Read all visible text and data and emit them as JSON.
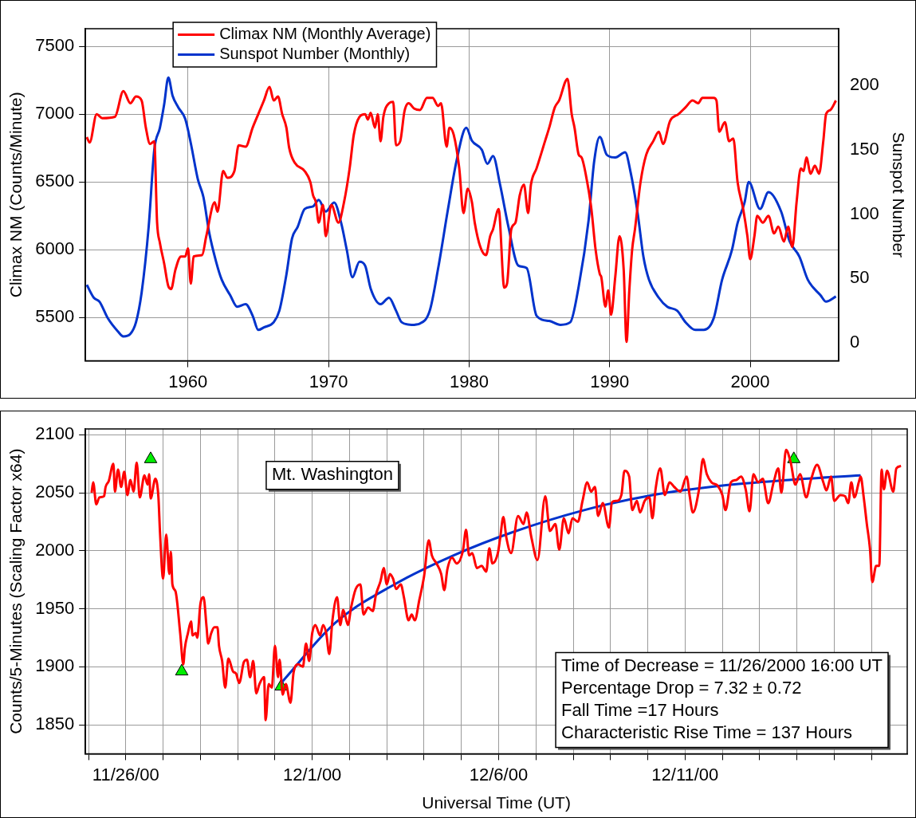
{
  "chart_data": [
    {
      "type": "line",
      "ylabel": "Climax NM (Counts/Minute)",
      "y2label": "Sunspot Number",
      "xlim": [
        1952.7,
        2006.3
      ],
      "ylim": [
        5180,
        7630
      ],
      "y2lim": [
        -14,
        244
      ],
      "xticks": [
        1960,
        1970,
        1980,
        1990,
        2000
      ],
      "yticks": [
        5500,
        6000,
        6500,
        7000,
        7500
      ],
      "y2ticks": [
        0,
        50,
        100,
        150,
        200
      ],
      "grid": true,
      "legend": "top left",
      "series": [
        {
          "name": "Climax NM (Monthly Average)",
          "color": "#ff0000",
          "x": [
            1952.8,
            1953.0,
            1953.5,
            1953.9,
            1954.8,
            1955.4,
            1955.9,
            1956.3,
            1956.7,
            1957.0,
            1957.3,
            1957.6,
            1957.8,
            1958.0,
            1958.3,
            1958.6,
            1958.8,
            1959.1,
            1959.5,
            1959.8,
            1960.0,
            1960.2,
            1960.4,
            1961.0,
            1961.3,
            1961.9,
            1962.1,
            1962.5,
            1962.8,
            1963.3,
            1963.6,
            1964.1,
            1964.6,
            1965.0,
            1965.4,
            1965.8,
            1966.1,
            1966.4,
            1966.7,
            1967.0,
            1967.2,
            1967.6,
            1968.3,
            1968.7,
            1968.9,
            1969.1,
            1969.3,
            1969.6,
            1969.8,
            1970.2,
            1970.7,
            1971.1,
            1971.5,
            1971.8,
            1972.2,
            1972.6,
            1972.8,
            1973.0,
            1973.3,
            1973.5,
            1973.7,
            1973.9,
            1974.3,
            1974.6,
            1974.8,
            1975.1,
            1975.4,
            1975.7,
            1976.1,
            1976.5,
            1977.0,
            1977.4,
            1977.8,
            1978.0,
            1978.4,
            1978.6,
            1978.9,
            1979.3,
            1979.6,
            1979.9,
            1980.2,
            1980.4,
            1980.8,
            1981.2,
            1981.5,
            1981.7,
            1982.1,
            1982.5,
            1982.7,
            1983.0,
            1983.3,
            1983.6,
            1983.9,
            1984.2,
            1984.4,
            1984.8,
            1985.4,
            1985.7,
            1986.1,
            1986.4,
            1987.0,
            1987.3,
            1987.5,
            1987.8,
            1988.0,
            1988.4,
            1988.7,
            1989.0,
            1989.3,
            1989.4,
            1989.7,
            1989.9,
            1990.1,
            1990.4,
            1990.7,
            1991.0,
            1991.2,
            1991.4,
            1991.6,
            1991.8,
            1992.2,
            1992.6,
            1993.1,
            1993.5,
            1993.8,
            1994.3,
            1994.9,
            1995.4,
            1995.9,
            1996.3,
            1996.6,
            1997.4,
            1997.6,
            1997.8,
            1998.2,
            1998.5,
            1998.8,
            1999.1,
            1999.5,
            1999.8,
            2000.0,
            2000.3,
            2000.5,
            2000.9,
            2001.3,
            2001.7,
            2002.0,
            2002.4,
            2002.7,
            2003.0,
            2003.3,
            2003.6,
            2003.8,
            2004.0,
            2004.3,
            2004.6,
            2004.9,
            2005.2,
            2005.4,
            2005.7,
            2006.1
          ],
          "values": [
            6830,
            6790,
            7000,
            6970,
            6980,
            7170,
            7080,
            7130,
            7100,
            6900,
            6780,
            6800,
            6200,
            6050,
            5900,
            5730,
            5710,
            5850,
            5950,
            5950,
            6010,
            5750,
            5950,
            5960,
            6100,
            6350,
            6280,
            6580,
            6530,
            6580,
            6770,
            6760,
            6900,
            7000,
            7100,
            7200,
            7100,
            7130,
            7000,
            6900,
            6750,
            6640,
            6580,
            6500,
            6400,
            6350,
            6200,
            6330,
            6100,
            6330,
            6200,
            6350,
            6600,
            6850,
            6980,
            7000,
            6960,
            7010,
            6900,
            7000,
            6800,
            6980,
            7080,
            7090,
            6770,
            6800,
            7020,
            7080,
            7040,
            7030,
            7120,
            7120,
            7060,
            7080,
            6760,
            6900,
            6850,
            6600,
            6270,
            6450,
            6350,
            6200,
            6020,
            5960,
            6100,
            6150,
            6300,
            5720,
            5750,
            6150,
            6200,
            6400,
            6480,
            6270,
            6480,
            6600,
            6800,
            6900,
            7050,
            7100,
            7260,
            7000,
            6900,
            6700,
            6680,
            6500,
            6300,
            6000,
            5820,
            5800,
            5580,
            5700,
            5520,
            5800,
            6100,
            5850,
            5320,
            5700,
            6000,
            6150,
            6500,
            6700,
            6800,
            6870,
            6780,
            6950,
            7000,
            7050,
            7100,
            7080,
            7120,
            7120,
            7100,
            6870,
            6940,
            6800,
            6820,
            6500,
            6300,
            6100,
            5930,
            6100,
            6250,
            6200,
            6250,
            6120,
            6170,
            6060,
            6170,
            6020,
            6350,
            6600,
            6580,
            6680,
            6560,
            6620,
            6560,
            6800,
            7000,
            7030,
            7100
          ]
        },
        {
          "name": "Sunspot Number (Monthly)",
          "color": "#0033cc",
          "axis": "y2",
          "x": [
            1952.8,
            1953.3,
            1953.7,
            1954.3,
            1955.0,
            1955.4,
            1955.9,
            1956.3,
            1956.7,
            1957.2,
            1957.6,
            1958.0,
            1958.3,
            1958.6,
            1958.9,
            1959.3,
            1959.8,
            1960.2,
            1960.7,
            1961.1,
            1961.5,
            1962.0,
            1962.4,
            1963.0,
            1963.5,
            1964.1,
            1964.6,
            1965.0,
            1965.4,
            1966.1,
            1966.5,
            1967.0,
            1967.4,
            1967.8,
            1968.3,
            1968.9,
            1969.3,
            1969.8,
            1970.4,
            1970.9,
            1971.3,
            1971.7,
            1972.2,
            1972.6,
            1973.0,
            1973.7,
            1974.3,
            1974.8,
            1975.2,
            1975.9,
            1976.5,
            1977.2,
            1977.8,
            1978.5,
            1979.1,
            1979.8,
            1980.2,
            1980.9,
            1981.3,
            1981.7,
            1982.2,
            1982.8,
            1983.5,
            1984.1,
            1984.8,
            1985.7,
            1986.5,
            1987.2,
            1987.8,
            1988.5,
            1988.9,
            1989.3,
            1989.8,
            1990.4,
            1991.1,
            1991.5,
            1992.0,
            1992.4,
            1992.8,
            1993.5,
            1994.1,
            1994.8,
            1995.4,
            1996.1,
            1996.7,
            1997.4,
            1998.0,
            1998.7,
            1999.1,
            1999.6,
            1999.9,
            2000.7,
            2001.3,
            2002.2,
            2002.8,
            2003.5,
            2004.1,
            2005.0,
            2005.4,
            2006.1
          ],
          "values": [
            45,
            35,
            32,
            19,
            9,
            5,
            7,
            16,
            39,
            90,
            150,
            167,
            185,
            206,
            192,
            183,
            174,
            155,
            127,
            113,
            86,
            63,
            49,
            37,
            28,
            30,
            21,
            10,
            12,
            16,
            25,
            53,
            81,
            90,
            104,
            106,
            111,
            102,
            109,
            93,
            72,
            51,
            63,
            60,
            42,
            30,
            35,
            25,
            16,
            14,
            15,
            25,
            58,
            104,
            141,
            167,
            157,
            150,
            139,
            145,
            123,
            90,
            60,
            58,
            21,
            17,
            14,
            16,
            44,
            95,
            141,
            160,
            146,
            144,
            148,
            132,
            100,
            67,
            49,
            35,
            28,
            25,
            16,
            10,
            10,
            19,
            49,
            72,
            93,
            109,
            125,
            104,
            117,
            102,
            79,
            67,
            49,
            37,
            32,
            36
          ]
        }
      ]
    },
    {
      "type": "line",
      "xlabel": "Universal Time (UT)",
      "ylabel": "Counts/5-Minutes (Scaling Factor x64)",
      "xlim": [
        "2000-11-24T22:00",
        "2000-12-16T23:00"
      ],
      "ylim": [
        1825,
        2105
      ],
      "xticks": [
        {
          "value": "2000-11-25T00:00",
          "label": null
        },
        {
          "value": "2000-11-26T00:00",
          "label": "11/26/00"
        },
        {
          "value": "2000-11-27T00:00",
          "label": null
        },
        {
          "value": "2000-11-28T00:00",
          "label": null
        },
        {
          "value": "2000-11-29T00:00",
          "label": null
        },
        {
          "value": "2000-11-30T00:00",
          "label": null
        },
        {
          "value": "2000-12-01T00:00",
          "label": "12/1/00"
        },
        {
          "value": "2000-12-02T00:00",
          "label": null
        },
        {
          "value": "2000-12-03T00:00",
          "label": null
        },
        {
          "value": "2000-12-04T00:00",
          "label": null
        },
        {
          "value": "2000-12-05T00:00",
          "label": null
        },
        {
          "value": "2000-12-06T00:00",
          "label": "12/6/00"
        },
        {
          "value": "2000-12-07T00:00",
          "label": null
        },
        {
          "value": "2000-12-08T00:00",
          "label": null
        },
        {
          "value": "2000-12-09T00:00",
          "label": null
        },
        {
          "value": "2000-12-10T00:00",
          "label": null
        },
        {
          "value": "2000-12-11T00:00",
          "label": "12/11/00"
        },
        {
          "value": "2000-12-12T00:00",
          "label": null
        },
        {
          "value": "2000-12-13T00:00",
          "label": null
        },
        {
          "value": "2000-12-14T00:00",
          "label": null
        },
        {
          "value": "2000-12-15T00:00",
          "label": null
        },
        {
          "value": "2000-12-16T00:00",
          "label": null
        }
      ],
      "yticks": [
        1850,
        1900,
        1950,
        2000,
        2050,
        2100
      ],
      "grid": true,
      "annotations": [
        "Mt. Washington",
        "Time of Decrease = 11/26/2000 16:00 UT",
        "Percentage Drop = 7.32 ± 0.72",
        "Fall Time =17 Hours",
        "Characteristic Rise Time = 137 Hours"
      ],
      "series": [
        {
          "color": "#ff0000",
          "x": [
            "2000-11-25T02:00",
            "2000-11-25T03:00",
            "2000-11-25T05:00",
            "2000-11-25T07:00",
            "2000-11-25T10:00",
            "2000-11-25T11:00",
            "2000-11-25T13:00",
            "2000-11-25T16:00",
            "2000-11-25T17:00",
            "2000-11-25T19:00",
            "2000-11-25T21:00",
            "2000-11-25T23:00",
            "2000-11-26T01:00",
            "2000-11-26T03:00",
            "2000-11-26T05:00",
            "2000-11-26T07:00",
            "2000-11-26T09:00",
            "2000-11-26T12:00",
            "2000-11-26T14:00",
            "2000-11-26T15:00",
            "2000-11-26T16:00",
            "2000-11-26T19:00",
            "2000-11-26T21:00",
            "2000-11-26T22:00",
            "2000-11-27T00:00",
            "2000-11-27T02:00",
            "2000-11-27T04:00",
            "2000-11-27T05:00",
            "2000-11-27T06:00",
            "2000-11-27T08:00",
            "2000-11-27T11:00",
            "2000-11-27T13:00",
            "2000-11-27T14:00",
            "2000-11-27T16:00",
            "2000-11-27T18:00",
            "2000-11-27T19:00",
            "2000-11-27T21:00",
            "2000-11-27T22:00",
            "2000-11-28T00:00",
            "2000-11-28T02:00",
            "2000-11-28T04:00",
            "2000-11-28T05:00",
            "2000-11-28T07:00",
            "2000-11-28T09:00",
            "2000-11-28T11:00",
            "2000-11-28T12:00",
            "2000-11-28T14:00",
            "2000-11-28T16:00",
            "2000-11-28T18:00",
            "2000-11-28T21:00",
            "2000-11-28T23:00",
            "2000-11-29T01:00",
            "2000-11-29T04:00",
            "2000-11-29T06:00",
            "2000-11-29T08:00",
            "2000-11-29T10:00",
            "2000-11-29T12:00",
            "2000-11-29T14:00",
            "2000-11-29T17:00",
            "2000-11-29T18:00",
            "2000-11-29T20:00",
            "2000-11-29T22:00",
            "2000-11-30T00:00",
            "2000-11-30T02:00",
            "2000-11-30T03:00",
            "2000-11-30T05:00",
            "2000-11-30T07:00",
            "2000-11-30T10:00",
            "2000-11-30T12:00",
            "2000-11-30T15:00",
            "2000-11-30T18:00",
            "2000-11-30T20:00",
            "2000-11-30T22:00",
            "2000-12-01T00:00",
            "2000-12-01T02:00",
            "2000-12-01T05:00",
            "2000-12-01T07:00",
            "2000-12-01T09:00",
            "2000-12-01T11:00",
            "2000-12-01T13:00",
            "2000-12-01T16:00",
            "2000-12-01T18:00",
            "2000-12-01T20:00",
            "2000-12-01T23:00",
            "2000-12-02T01:00",
            "2000-12-02T04:00",
            "2000-12-02T07:00",
            "2000-12-02T09:00",
            "2000-12-02T12:00",
            "2000-12-02T15:00",
            "2000-12-02T17:00",
            "2000-12-02T20:00",
            "2000-12-02T22:00",
            "2000-12-03T00:00",
            "2000-12-03T02:00",
            "2000-12-03T04:00",
            "2000-12-03T06:00",
            "2000-12-03T09:00",
            "2000-12-03T11:00",
            "2000-12-03T14:00",
            "2000-12-03T16:00",
            "2000-12-03T18:00",
            "2000-12-03T21:00",
            "2000-12-04T00:00",
            "2000-12-04T03:00",
            "2000-12-04T05:00",
            "2000-12-04T08:00",
            "2000-12-04T11:00",
            "2000-12-04T13:00",
            "2000-12-04T15:00",
            "2000-12-04T18:00",
            "2000-12-04T21:00",
            "2000-12-05T01:00",
            "2000-12-05T03:00",
            "2000-12-05T05:00",
            "2000-12-05T07:00",
            "2000-12-05T10:00",
            "2000-12-05T13:00",
            "2000-12-05T16:00",
            "2000-12-05T18:00",
            "2000-12-05T20:00",
            "2000-12-05T23:30",
            "2000-12-06T01:00",
            "2000-12-06T03:00",
            "2000-12-06T05:00",
            "2000-12-06T08:00",
            "2000-12-06T12:30",
            "2000-12-06T16:00",
            "2000-12-06T18:00",
            "2000-12-06T21:00",
            "2000-12-07T01:00",
            "2000-12-07T06:00",
            "2000-12-07T09:00",
            "2000-12-07T12:30",
            "2000-12-07T15:00",
            "2000-12-07T18:00",
            "2000-12-07T21:00",
            "2000-12-07T23:30",
            "2000-12-08T03:00",
            "2000-12-08T06:00",
            "2000-12-08T09:00",
            "2000-12-08T11:30",
            "2000-12-08T14:00",
            "2000-12-08T16:00",
            "2000-12-08T19:00",
            "2000-12-08T23:00",
            "2000-12-09T01:00",
            "2000-12-09T04:00",
            "2000-12-09T07:00",
            "2000-12-09T09:00",
            "2000-12-09T12:00",
            "2000-12-09T14:00",
            "2000-12-09T17:00",
            "2000-12-09T19:00",
            "2000-12-09T22:00",
            "2000-12-10T01:00",
            "2000-12-10T03:00",
            "2000-12-10T05:00",
            "2000-12-10T08:00",
            "2000-12-10T11:00",
            "2000-12-10T14:00",
            "2000-12-10T17:00",
            "2000-12-10T21:00",
            "2000-12-11T01:00",
            "2000-12-11T03:00",
            "2000-12-11T05:00",
            "2000-12-11T09:00",
            "2000-12-11T11:30",
            "2000-12-11T14:00",
            "2000-12-11T17:00",
            "2000-12-11T21:00",
            "2000-12-12T00:00",
            "2000-12-12T02:00",
            "2000-12-12T05:30",
            "2000-12-12T09:00",
            "2000-12-12T12:00",
            "2000-12-12T15:00",
            "2000-12-12T17:30",
            "2000-12-12T20:00",
            "2000-12-12T23:00",
            "2000-12-13T02:00",
            "2000-12-13T05:30",
            "2000-12-13T09:00",
            "2000-12-13T12:00",
            "2000-12-13T14:00",
            "2000-12-13T17:00",
            "2000-12-13T20:00",
            "2000-12-13T23:00",
            "2000-12-14T02:00",
            "2000-12-14T06:00",
            "2000-12-14T09:00",
            "2000-12-14T13:00",
            "2000-12-14T17:00",
            "2000-12-14T19:00",
            "2000-12-14T22:00",
            "2000-12-15T00:00",
            "2000-12-15T04:00",
            "2000-12-15T07:00",
            "2000-12-15T09:00",
            "2000-12-15T11:00",
            "2000-12-15T13:00",
            "2000-12-15T16:00",
            "2000-12-15T17:00",
            "2000-12-15T19:00",
            "2000-12-15T21:00",
            "2000-12-15T23:00",
            "2000-12-16T00:30",
            "2000-12-16T03:00",
            "2000-12-16T05:00",
            "2000-12-16T06:30",
            "2000-12-16T08:00",
            "2000-12-16T10:00",
            "2000-12-16T14:00",
            "2000-12-16T16:00",
            "2000-12-16T19:00"
          ],
          "values": [
            2050,
            2059,
            2040,
            2046,
            2047,
            2055,
            2060,
            2075,
            2051,
            2070,
            2055,
            2068,
            2048,
            2061,
            2051,
            2076,
            2046,
            2065,
            2057,
            2066,
            2045,
            2062,
            2046,
            2016,
            1976,
            2014,
            1980,
            1999,
            1971,
            1965,
            1929,
            1902,
            1916,
            1929,
            1939,
            1927,
            1929,
            1925,
            1954,
            1960,
            1934,
            1920,
            1929,
            1934,
            1934,
            1918,
            1905,
            1882,
            1907,
            1896,
            1894,
            1886,
            1904,
            1906,
            1891,
            1905,
            1877,
            1885,
            1891,
            1854,
            1885,
            1882,
            1918,
            1891,
            1906,
            1876,
            1885,
            1869,
            1895,
            1902,
            1900,
            1920,
            1905,
            1929,
            1936,
            1927,
            1936,
            1929,
            1911,
            1940,
            1960,
            1936,
            1949,
            1936,
            1951,
            1967,
            1971,
            1945,
            1951,
            1948,
            1962,
            1974,
            1985,
            1971,
            1980,
            1976,
            1967,
            1971,
            1960,
            1940,
            1945,
            1940,
            1958,
            1978,
            2009,
            1996,
            1989,
            1980,
            1966,
            1984,
            1994,
            1989,
            2000,
            2018,
            1996,
            1998,
            1985,
            1987,
            1982,
            2002,
            1989,
            1998,
            2011,
            2029,
            2011,
            1998,
            2030,
            2023,
            2033,
            2012,
            1992,
            2047,
            2017,
            2023,
            2001,
            2028,
            2015,
            2028,
            2025,
            2043,
            2059,
            2051,
            2055,
            2030,
            2041,
            2020,
            2042,
            2043,
            2048,
            2069,
            2064,
            2035,
            2043,
            2033,
            2043,
            2046,
            2028,
            2053,
            2071,
            2048,
            2059,
            2055,
            2051,
            2064,
            2047,
            2033,
            2053,
            2079,
            2066,
            2059,
            2056,
            2048,
            2035,
            2059,
            2061,
            2064,
            2053,
            2034,
            2066,
            2059,
            2062,
            2041,
            2059,
            2071,
            2050,
            2087,
            2076,
            2057,
            2066,
            2046,
            2061,
            2074,
            2059,
            2052,
            2064,
            2043,
            2048,
            2047,
            2041,
            2059,
            2046,
            2060,
            2064,
            2046,
            2023,
            2002,
            1973,
            1987,
            1987,
            2070,
            2053,
            2069,
            2051,
            2071,
            2073
          ]
        },
        {
          "type": "line",
          "color": "#0033cc",
          "x": [
            "2000-11-30T04:00",
            "2000-12-01T15:00",
            "2000-12-03T05:00",
            "2000-12-04T19:00",
            "2000-12-06T09:00",
            "2000-12-08T07:00",
            "2000-12-10T03:00",
            "2000-12-11T23:00",
            "2000-12-13T19:00",
            "2000-12-15T17:00"
          ],
          "values": [
            1886,
            1938,
            1971,
            1996,
            2016,
            2035,
            2048,
            2056,
            2061,
            2065
          ]
        },
        {
          "type": "scatter",
          "color": "#00ee00",
          "marker": "triangle",
          "x": [
            "2000-11-26T16:00",
            "2000-11-27T12:00",
            "2000-11-30T04:00",
            "2000-12-13T22:00"
          ],
          "values": [
            2079,
            1896,
            1883,
            2079
          ]
        }
      ]
    }
  ]
}
